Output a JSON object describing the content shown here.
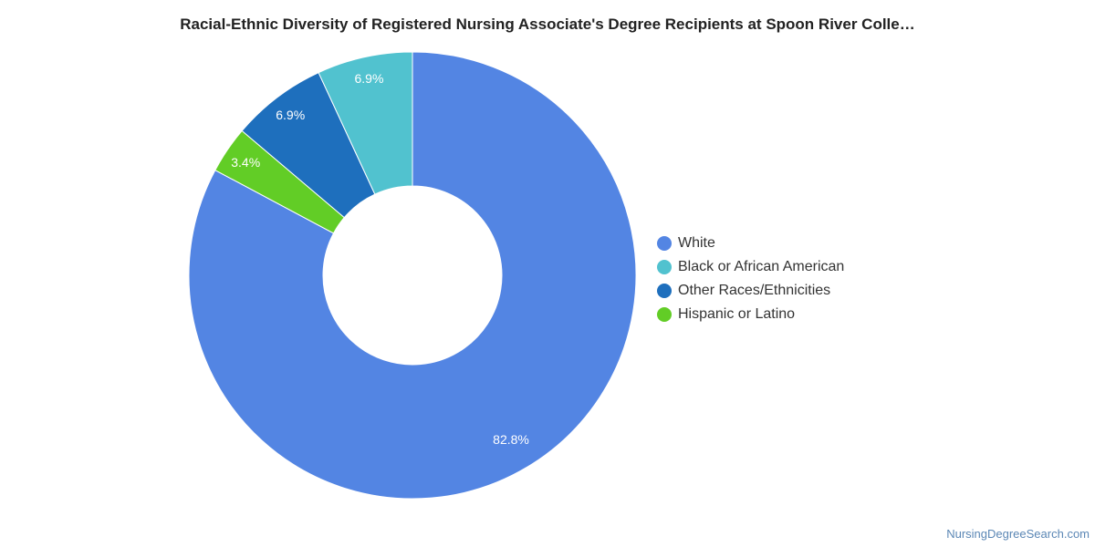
{
  "chart_data": {
    "type": "pie",
    "title": "Racial-Ethnic Diversity of Registered Nursing Associate's Degree Recipients at Spoon River Colle…",
    "donut": true,
    "legend_position": "right",
    "slices": [
      {
        "label": "White",
        "value": 82.8,
        "display": "82.8%",
        "color": "#5385e3"
      },
      {
        "label": "Hispanic or Latino",
        "value": 3.4,
        "display": "3.4%",
        "color": "#62cd26"
      },
      {
        "label": "Other Races/Ethnicities",
        "value": 6.9,
        "display": "6.9%",
        "color": "#1e6fbd"
      },
      {
        "label": "Black or African American",
        "value": 6.9,
        "display": "6.9%",
        "color": "#51c2cf"
      }
    ],
    "legend": [
      {
        "label": "White",
        "color": "#5385e3"
      },
      {
        "label": "Black or African American",
        "color": "#51c2cf"
      },
      {
        "label": "Other Races/Ethnicities",
        "color": "#1e6fbd"
      },
      {
        "label": "Hispanic or Latino",
        "color": "#62cd26"
      }
    ]
  },
  "credit": "NursingDegreeSearch.com"
}
